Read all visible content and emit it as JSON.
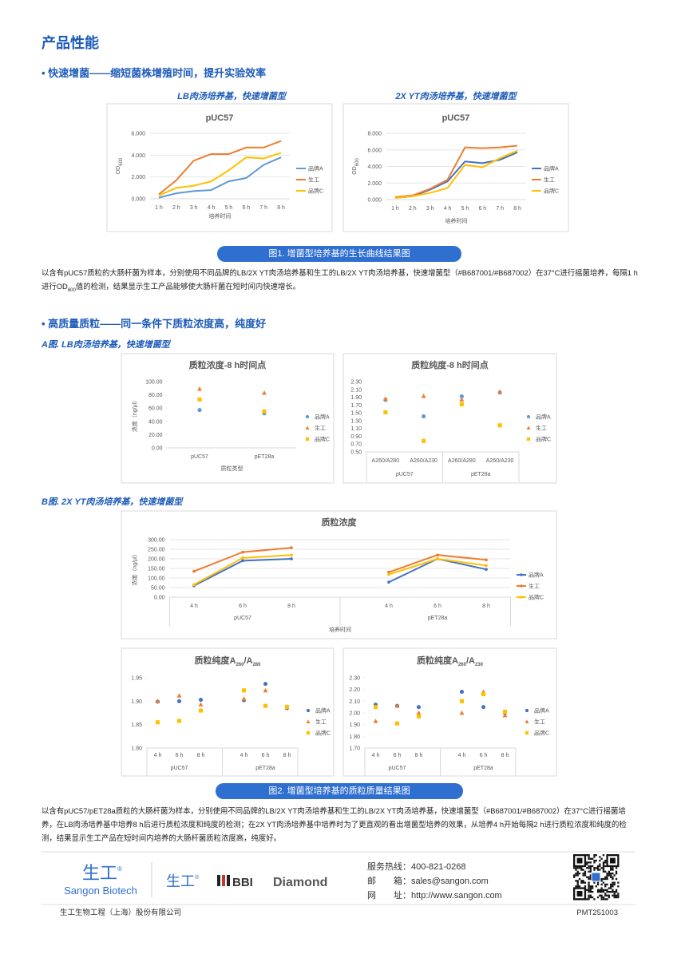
{
  "header": {
    "title": "产品性能"
  },
  "section_1": {
    "heading": "• 快速增菌——缩短菌株增殖时间，提升实验效率",
    "chart_headings": [
      "LB肉汤培养基，快速增菌型",
      "2X YT肉汤培养基，快速增菌型"
    ],
    "caption": "图1. 增菌型培养基的生长曲线结果图",
    "paragraph": [
      "以含有pUC57质粒的大肠杆菌为样本，分别使用不同品牌的LB/2X YT肉汤培养基和生工的LB/2X YT肉汤培养基，快速增菌型（#B687001/#B687002）在37°C进行摇菌培养，每隔1 h进行OD",
      "600",
      "值的检测，结果显示生工产品能够使大肠杆菌在短时间内快速增长。"
    ]
  },
  "section_2": {
    "heading": "• 高质量质粒——同一条件下质粒浓度高，纯度好",
    "sub_headings": [
      "A图. LB肉汤培养基，快速增菌型",
      "B图. 2X YT肉汤培养基，快速增菌型"
    ],
    "caption": "图2. 增菌型培养基的质粒质量结果图",
    "paragraph": "以含有pUC57/pET28a质粒的大肠杆菌为样本，分别使用不同品牌的LB/2X YT肉汤培养基和生工的LB/2X YT肉汤培养基，快速增菌型（#B687001/#B687002）在37°C进行摇菌培养，在LB肉汤培养基中培养8 h后进行质粒浓度和纯度的检测；在2X YT肉汤培养基中培养时为了更直观的看出增菌型培养的效果，从培养4 h开始每隔2 h进行质粒浓度和纯度的检测，结果显示生工产品在短时间内培养的大肠杆菌质粒浓度高，纯度好。"
  },
  "chart_data": [
    {
      "type": "line",
      "title": [
        "pUC57"
      ],
      "x_label": "培养时间",
      "y_label": [
        "OD",
        "600"
      ],
      "grid": true,
      "categories": [
        "1 h",
        "2 h",
        "3 h",
        "4 h",
        "5 h",
        "6 h",
        "7 h",
        "8 h"
      ],
      "ylim": [
        0,
        6
      ],
      "yticks": [
        {
          "value": 0,
          "label": "0.000"
        },
        {
          "value": 2,
          "label": "2.000"
        },
        {
          "value": 4,
          "label": "4.000"
        },
        {
          "value": 6,
          "label": "6.000"
        }
      ],
      "series": [
        {
          "name": "品牌A",
          "color": "#5b9bd5",
          "values": [
            0.1,
            0.5,
            0.7,
            0.8,
            1.6,
            1.9,
            3.1,
            3.8
          ]
        },
        {
          "name": "生工",
          "color": "#ed7d31",
          "values": [
            0.4,
            1.7,
            3.5,
            4.1,
            4.1,
            4.7,
            4.7,
            5.3
          ]
        },
        {
          "name": "品牌C",
          "color": "#ffc000",
          "values": [
            0.3,
            1.0,
            1.2,
            1.6,
            2.6,
            3.8,
            3.7,
            4.2
          ]
        }
      ]
    },
    {
      "type": "line",
      "title": [
        "pUC57"
      ],
      "x_label": "培养时间",
      "y_label": [
        "OD",
        "600"
      ],
      "grid": true,
      "categories": [
        "1 h",
        "2 h",
        "3 h",
        "4 h",
        "5 h",
        "6 h",
        "7 h",
        "8 h"
      ],
      "ylim": [
        0,
        8
      ],
      "yticks": [
        {
          "value": 0,
          "label": "0.000"
        },
        {
          "value": 2,
          "label": "2.000"
        },
        {
          "value": 4,
          "label": "4.000"
        },
        {
          "value": 6,
          "label": "6.000"
        },
        {
          "value": 8,
          "label": "8.000"
        }
      ],
      "series": [
        {
          "name": "品牌A",
          "color": "#4472c4",
          "values": [
            0.2,
            0.4,
            1.2,
            2.2,
            4.6,
            4.4,
            4.8,
            5.7
          ]
        },
        {
          "name": "生工",
          "color": "#ed7d31",
          "values": [
            0.3,
            0.5,
            1.3,
            2.4,
            6.3,
            6.2,
            6.3,
            6.5
          ]
        },
        {
          "name": "品牌C",
          "color": "#ffc000",
          "values": [
            0.2,
            0.4,
            0.8,
            1.4,
            4.2,
            3.9,
            5.0,
            5.9
          ]
        }
      ]
    },
    {
      "type": "scatter",
      "title": [
        "质粒浓度-8 h时间点"
      ],
      "x_label": "质粒类型",
      "y_label": [
        "浓度（ng/μl）"
      ],
      "grid": false,
      "categories": [
        "pUC57",
        "pET28a"
      ],
      "ylim": [
        0,
        100
      ],
      "yticks": [
        {
          "value": 0,
          "label": "0.00"
        },
        {
          "value": 20,
          "label": "20.00"
        },
        {
          "value": 40,
          "label": "40.00"
        },
        {
          "value": 60,
          "label": "60.00"
        },
        {
          "value": 80,
          "label": "80.00"
        },
        {
          "value": 100,
          "label": "100.00"
        }
      ],
      "series": [
        {
          "name": "品牌A",
          "color": "#5b9bd5",
          "marker": "circle",
          "values": [
            57,
            52
          ]
        },
        {
          "name": "生工",
          "color": "#ed7d31",
          "marker": "triangle",
          "values": [
            89,
            83
          ]
        },
        {
          "name": "品牌C",
          "color": "#ffc000",
          "marker": "square",
          "values": [
            73,
            55
          ]
        }
      ]
    },
    {
      "type": "scatter",
      "title": [
        "质粒纯度-8 h时间点"
      ],
      "grid": false,
      "categories": [
        "A260/A280",
        "A260/A230",
        "A260/A280",
        "A260/A230"
      ],
      "groups": [
        "pUC57",
        "pET28a"
      ],
      "ylim": [
        0.5,
        2.3
      ],
      "yticks": [
        {
          "value": 0.5,
          "label": "0.50"
        },
        {
          "value": 0.7,
          "label": "0.70"
        },
        {
          "value": 0.9,
          "label": "0.90"
        },
        {
          "value": 1.1,
          "label": "1.10"
        },
        {
          "value": 1.3,
          "label": "1.30"
        },
        {
          "value": 1.5,
          "label": "1.50"
        },
        {
          "value": 1.7,
          "label": "1.70"
        },
        {
          "value": 1.9,
          "label": "1.90"
        },
        {
          "value": 2.1,
          "label": "2.10"
        },
        {
          "value": 2.3,
          "label": "2.30"
        }
      ],
      "series": [
        {
          "name": "品牌A",
          "color": "#5b9bd5",
          "marker": "circle",
          "values": [
            1.83,
            1.41,
            1.92,
            2.02
          ]
        },
        {
          "name": "生工",
          "color": "#ed7d31",
          "marker": "triangle",
          "values": [
            1.86,
            1.93,
            1.84,
            2.04
          ]
        },
        {
          "name": "品牌C",
          "color": "#ffc000",
          "marker": "square",
          "values": [
            1.51,
            0.78,
            1.72,
            1.18
          ]
        }
      ]
    },
    {
      "type": "line",
      "title": [
        "质粒浓度"
      ],
      "x_label": "培养时间",
      "y_label": [
        "浓度（ng/μl）"
      ],
      "grid": true,
      "markers": true,
      "categories": [
        "4 h",
        "6 h",
        "8 h",
        null,
        "4 h",
        "6 h",
        "8 h"
      ],
      "groups": [
        "pUC57",
        "pET28a"
      ],
      "ylim": [
        0,
        300
      ],
      "yticks": [
        {
          "value": 0,
          "label": "0.00"
        },
        {
          "value": 50,
          "label": "50.00"
        },
        {
          "value": 100,
          "label": "100.00"
        },
        {
          "value": 150,
          "label": "150.00"
        },
        {
          "value": 200,
          "label": "200.00"
        },
        {
          "value": 250,
          "label": "250.00"
        },
        {
          "value": 300,
          "label": "300.00"
        }
      ],
      "series": [
        {
          "name": "品牌A",
          "color": "#4472c4",
          "values": [
            60,
            190,
            200,
            null,
            78,
            200,
            145
          ]
        },
        {
          "name": "生工",
          "color": "#ed7d31",
          "values": [
            135,
            235,
            258,
            null,
            130,
            220,
            195
          ]
        },
        {
          "name": "品牌C",
          "color": "#ffc000",
          "values": [
            65,
            205,
            220,
            null,
            118,
            200,
            165
          ]
        }
      ]
    },
    {
      "type": "scatter",
      "title": [
        "质粒纯度A",
        "260",
        "/A",
        "280"
      ],
      "grid": false,
      "categories": [
        "4 h",
        "6 h",
        "8 h",
        null,
        "4 h",
        "6 h",
        "8 h"
      ],
      "groups": [
        "pUC57",
        "pET28a"
      ],
      "ylim": [
        1.8,
        1.95
      ],
      "yticks": [
        {
          "value": 1.8,
          "label": "1.80"
        },
        {
          "value": 1.85,
          "label": "1.85"
        },
        {
          "value": 1.9,
          "label": "1.90"
        },
        {
          "value": 1.95,
          "label": "1.95"
        }
      ],
      "series": [
        {
          "name": "品牌A",
          "color": "#4472c4",
          "marker": "circle",
          "values": [
            1.899,
            1.9,
            1.903,
            null,
            1.902,
            1.937,
            1.885
          ]
        },
        {
          "name": "生工",
          "color": "#ed7d31",
          "marker": "triangle",
          "values": [
            1.9,
            1.912,
            1.893,
            null,
            1.905,
            1.923,
            1.887
          ]
        },
        {
          "name": "品牌C",
          "color": "#ffc000",
          "marker": "square",
          "values": [
            1.855,
            1.858,
            1.88,
            null,
            1.923,
            1.89,
            1.888
          ]
        }
      ]
    },
    {
      "type": "scatter",
      "title": [
        "质粒纯度A",
        "260",
        "/A",
        "230"
      ],
      "grid": false,
      "categories": [
        "4 h",
        "6 h",
        "8 h",
        null,
        "4 h",
        "6 h",
        "8 h"
      ],
      "groups": [
        "pUC57",
        "pET28a"
      ],
      "ylim": [
        1.7,
        2.3
      ],
      "yticks": [
        {
          "value": 1.7,
          "label": "1.70"
        },
        {
          "value": 1.8,
          "label": "1.80"
        },
        {
          "value": 1.9,
          "label": "1.90"
        },
        {
          "value": 2.0,
          "label": "2.00"
        },
        {
          "value": 2.1,
          "label": "2.10"
        },
        {
          "value": 2.2,
          "label": "2.20"
        },
        {
          "value": 2.3,
          "label": "2.30"
        }
      ],
      "series": [
        {
          "name": "品牌A",
          "color": "#4472c4",
          "marker": "circle",
          "values": [
            2.07,
            2.06,
            2.05,
            null,
            2.18,
            2.05,
            2.0
          ]
        },
        {
          "name": "生工",
          "color": "#ed7d31",
          "marker": "triangle",
          "values": [
            1.93,
            2.06,
            2.0,
            null,
            2.0,
            2.18,
            1.98
          ]
        },
        {
          "name": "品牌C",
          "color": "#ffc000",
          "marker": "square",
          "values": [
            2.05,
            1.91,
            1.97,
            null,
            2.1,
            2.16,
            2.01
          ]
        }
      ]
    }
  ],
  "footer": {
    "logo": "生工",
    "registered": "®",
    "logo_en": "Sangon Biotech",
    "brands": [
      "生工",
      "BBI",
      "Diamond"
    ],
    "contacts": [
      {
        "label": "服务热线：",
        "value": "400-821-0268"
      },
      {
        "label": "邮　　箱：",
        "value": "sales@sangon.com"
      },
      {
        "label": "网　　址：",
        "value": "http://www.sangon.com"
      }
    ],
    "company": "生工生物工程（上海）股份有限公司",
    "code": "PMT251003"
  }
}
